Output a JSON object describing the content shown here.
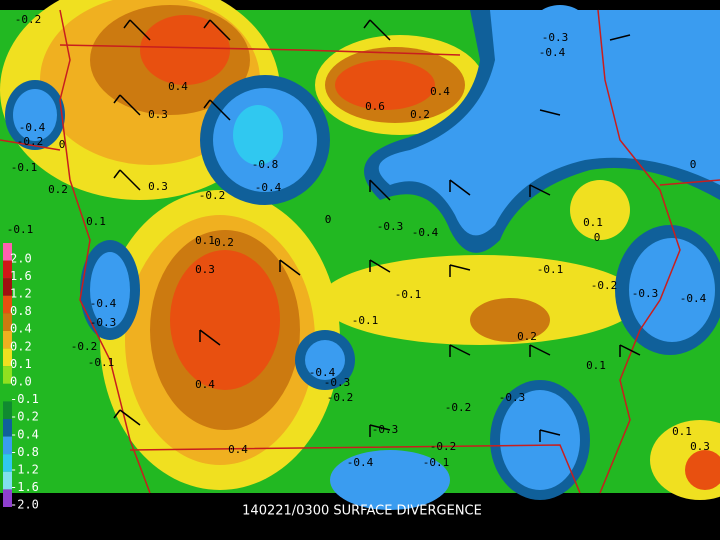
{
  "caption": "140221/0300 SURFACE DIVERGENCE",
  "legend": {
    "labels": [
      "2.0",
      "1.6",
      "1.2",
      "0.8",
      "0.4",
      "0.2",
      "0.1",
      "0.0",
      "-0.1",
      "-0.2",
      "-0.4",
      "-0.8",
      "-1.2",
      "-1.6",
      "-2.0"
    ]
  },
  "contour_labels": [
    "-0.2",
    "0.4",
    "0.3",
    "-0.4",
    "-0.2",
    "0",
    "-0.1",
    "0.2",
    "0.3",
    "-0.8",
    "-0.4",
    "-0.2",
    "0.1",
    "-0.1",
    "0.1",
    "0.2",
    "0.3",
    "0",
    "-0.3",
    "-0.4",
    "0.4",
    "0.6",
    "0.2",
    "-0.3",
    "-0.4",
    "0",
    "0.1",
    "0",
    "-0.1",
    "-0.2",
    "-0.3",
    "-0.4",
    "-0.1",
    "-0.4",
    "-0.3",
    "-0.2",
    "-0.1",
    "-0.1",
    "0.2",
    "0.1",
    "0.4",
    "-0.4",
    "-0.3",
    "-0.2",
    "-0.2",
    "-0.3",
    "-0.3",
    "0.1",
    "0.3",
    "0.4",
    "-0.2",
    "-0.1",
    "-0.4"
  ]
}
